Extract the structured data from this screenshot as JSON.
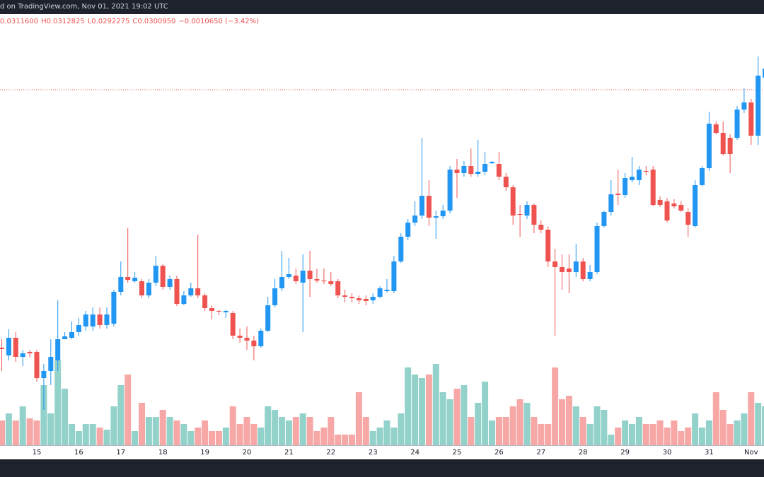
{
  "chart_data": {
    "type": "candlestick",
    "title": "d on TradingView.com, Nov 01, 2021 19:02 UTC",
    "legend": [
      "0.0311600",
      "H0.0312825",
      "L0.0292275",
      "C0.0300950",
      "−0.0010650 (−3.42%)"
    ],
    "categories": [
      null,
      null,
      null,
      null,
      null,
      "15",
      null,
      null,
      null,
      null,
      null,
      "16",
      null,
      null,
      null,
      null,
      null,
      "17",
      null,
      null,
      null,
      null,
      null,
      "18",
      null,
      null,
      null,
      null,
      null,
      "19",
      null,
      null,
      null,
      null,
      null,
      "20",
      null,
      null,
      null,
      null,
      null,
      "21",
      null,
      null,
      null,
      null,
      null,
      "22",
      null,
      null,
      null,
      null,
      null,
      "23",
      null,
      null,
      null,
      null,
      null,
      "24",
      null,
      null,
      null,
      null,
      null,
      "25",
      null,
      null,
      null,
      null,
      null,
      "26",
      null,
      null,
      null,
      null,
      null,
      "27",
      null,
      null,
      null,
      null,
      null,
      "28",
      null,
      null,
      null,
      null,
      null,
      "29",
      null,
      null,
      null,
      null,
      null,
      "30",
      null,
      null,
      null,
      null,
      null,
      "31",
      null,
      null,
      null,
      null,
      null,
      "Nov",
      null,
      null
    ],
    "open": [
      0.02276,
      0.02254,
      0.02304,
      0.0225,
      0.02264,
      0.02264,
      0.0219,
      0.0221,
      0.0224,
      0.023,
      0.02304,
      0.0232,
      0.02336,
      0.02336,
      0.0237,
      0.0234,
      0.02344,
      0.02434,
      0.02476,
      0.02464,
      0.02464,
      0.02424,
      0.0246,
      0.02508,
      0.02448,
      0.0247,
      0.024,
      0.02424,
      0.02444,
      0.02424,
      0.02388,
      0.0238,
      0.02376,
      0.02374,
      0.0231,
      0.02304,
      0.02296,
      0.0228,
      0.02324,
      0.02396,
      0.02444,
      0.02476,
      0.0248,
      0.0246,
      0.02494,
      0.0247,
      0.02466,
      0.02464,
      0.02464,
      0.02424,
      0.0242,
      0.02416,
      0.02414,
      0.0241,
      0.0242,
      0.02436,
      0.02436,
      0.0252,
      0.0259,
      0.0263,
      0.0265,
      0.02706,
      0.02644,
      0.02648,
      0.02664,
      0.0278,
      0.0277,
      0.0279,
      0.02768,
      0.02774,
      0.02798,
      0.02796,
      0.0276,
      0.0273,
      0.02654,
      0.0265,
      0.0268,
      0.02624,
      0.0261,
      0.0252,
      0.02504,
      0.025,
      0.0249,
      0.0252,
      0.0247,
      0.0249,
      0.0262,
      0.0266,
      0.02712,
      0.02708,
      0.0275,
      0.0275,
      0.02776,
      0.0278,
      0.02694,
      0.0269,
      0.02684,
      0.0268,
      0.0266,
      0.0262,
      0.02736,
      0.02784,
      0.02908,
      0.02884,
      0.0287,
      0.0287,
      0.0295,
      0.0297,
      0.02876,
      0.0304
    ],
    "high": [
      0.023,
      0.02328,
      0.0232,
      0.0227,
      0.0227,
      0.0227,
      0.0223,
      0.023,
      0.0241,
      0.0232,
      0.0235,
      0.0236,
      0.0238,
      0.0239,
      0.0239,
      0.0239,
      0.0244,
      0.0252,
      0.02614,
      0.0249,
      0.0247,
      0.0247,
      0.02536,
      0.02514,
      0.0248,
      0.0248,
      0.02436,
      0.0246,
      0.02596,
      0.0243,
      0.02396,
      0.02384,
      0.02384,
      0.0238,
      0.0233,
      0.02336,
      0.0231,
      0.0233,
      0.0242,
      0.0247,
      0.0255,
      0.0253,
      0.025,
      0.0254,
      0.0255,
      0.025,
      0.025,
      0.0249,
      0.0247,
      0.0244,
      0.0243,
      0.02424,
      0.02424,
      0.0243,
      0.0245,
      0.0247,
      0.02536,
      0.026,
      0.0264,
      0.0269,
      0.0287,
      0.0275,
      0.02664,
      0.0268,
      0.0279,
      0.0281,
      0.02804,
      0.0284,
      0.02864,
      0.0283,
      0.02804,
      0.0283,
      0.0277,
      0.02736,
      0.0268,
      0.0269,
      0.02684,
      0.02636,
      0.0262,
      0.02556,
      0.0254,
      0.0254,
      0.0257,
      0.0253,
      0.0251,
      0.0263,
      0.02664,
      0.0275,
      0.0278,
      0.0277,
      0.02816,
      0.0279,
      0.0279,
      0.0279,
      0.02704,
      0.027,
      0.02696,
      0.0269,
      0.0267,
      0.0275,
      0.0279,
      0.02944,
      0.02916,
      0.02916,
      0.0288,
      0.0296,
      0.0301,
      0.0298,
      0.031,
      0.0307
    ],
    "low": [
      0.0221,
      0.0224,
      0.02236,
      0.02224,
      0.0225,
      0.0218,
      0.021,
      0.0217,
      0.0221,
      0.023,
      0.023,
      0.0231,
      0.02324,
      0.02324,
      0.0233,
      0.0233,
      0.02336,
      0.02424,
      0.0246,
      0.0246,
      0.02416,
      0.02416,
      0.0245,
      0.0244,
      0.0244,
      0.02394,
      0.02396,
      0.0242,
      0.02416,
      0.0238,
      0.02356,
      0.02368,
      0.0236,
      0.023,
      0.0229,
      0.0227,
      0.0224,
      0.02276,
      0.0232,
      0.0239,
      0.02436,
      0.0247,
      0.02456,
      0.0232,
      0.0242,
      0.0246,
      0.02456,
      0.0245,
      0.02416,
      0.02404,
      0.02404,
      0.024,
      0.02396,
      0.024,
      0.02416,
      0.02432,
      0.0243,
      0.02516,
      0.0258,
      0.0262,
      0.0264,
      0.0262,
      0.02584,
      0.0264,
      0.02656,
      0.027,
      0.0276,
      0.0276,
      0.0276,
      0.02764,
      0.02796,
      0.0275,
      0.0272,
      0.02624,
      0.0259,
      0.0264,
      0.026,
      0.026,
      0.02504,
      0.0231,
      0.0244,
      0.0243,
      0.02476,
      0.02464,
      0.02464,
      0.02484,
      0.02616,
      0.0265,
      0.0268,
      0.027,
      0.02744,
      0.02736,
      0.02764,
      0.02676,
      0.02674,
      0.0263,
      0.0267,
      0.0266,
      0.0259,
      0.02616,
      0.02732,
      0.02776,
      0.0288,
      0.0282,
      0.0277,
      0.02864,
      0.0294,
      0.0285,
      0.0285,
      0.0304
    ],
    "close": [
      0.02272,
      0.02304,
      0.0225,
      0.0226,
      0.0226,
      0.0219,
      0.0221,
      0.0225,
      0.023,
      0.02308,
      0.0232,
      0.0234,
      0.0237,
      0.0237,
      0.0234,
      0.0237,
      0.02434,
      0.02476,
      0.02468,
      0.02474,
      0.02424,
      0.0246,
      0.02508,
      0.02448,
      0.0247,
      0.024,
      0.02424,
      0.02444,
      0.02424,
      0.02388,
      0.0238,
      0.02378,
      0.0238,
      0.0231,
      0.02304,
      0.02296,
      0.0228,
      0.02324,
      0.02396,
      0.02444,
      0.02476,
      0.02484,
      0.02464,
      0.02494,
      0.0247,
      0.02466,
      0.02464,
      0.02456,
      0.02424,
      0.0242,
      0.02416,
      0.0241,
      0.02408,
      0.0242,
      0.02444,
      0.0244,
      0.0252,
      0.0259,
      0.0263,
      0.0265,
      0.02706,
      0.02644,
      0.02648,
      0.02664,
      0.0278,
      0.0277,
      0.0279,
      0.02768,
      0.02774,
      0.02796,
      0.02802,
      0.0276,
      0.0273,
      0.0265,
      0.02652,
      0.0268,
      0.02624,
      0.0261,
      0.0252,
      0.02504,
      0.0249,
      0.0249,
      0.0252,
      0.0247,
      0.0249,
      0.0262,
      0.0266,
      0.0271,
      0.02708,
      0.02756,
      0.0276,
      0.0278,
      0.02774,
      0.0268,
      0.0268,
      0.02636,
      0.02676,
      0.02664,
      0.02624,
      0.02736,
      0.02784,
      0.0291,
      0.02884,
      0.02824,
      0.02824,
      0.0295,
      0.0297,
      0.02876,
      0.03046,
      0.03066
    ],
    "volume": [
      35,
      45,
      35,
      55,
      38,
      35,
      85,
      45,
      120,
      80,
      30,
      20,
      30,
      30,
      25,
      22,
      55,
      85,
      100,
      20,
      60,
      40,
      40,
      50,
      40,
      35,
      30,
      20,
      25,
      35,
      20,
      20,
      25,
      55,
      30,
      40,
      30,
      25,
      55,
      50,
      40,
      35,
      40,
      45,
      40,
      20,
      25,
      40,
      15,
      15,
      15,
      75,
      40,
      20,
      25,
      35,
      25,
      45,
      110,
      100,
      95,
      100,
      115,
      75,
      65,
      80,
      85,
      40,
      60,
      90,
      35,
      40,
      40,
      55,
      65,
      60,
      40,
      30,
      30,
      110,
      65,
      70,
      55,
      40,
      30,
      55,
      50,
      15,
      25,
      35,
      30,
      40,
      30,
      30,
      35,
      25,
      35,
      20,
      25,
      45,
      25,
      35,
      75,
      50,
      30,
      35,
      45,
      75,
      60,
      55
    ],
    "ylim": [
      0.02,
      0.0326
    ],
    "volume_ylim": [
      0,
      300
    ],
    "price_line": 0.03006,
    "up_color": "#2196f3",
    "down_color": "#ef5350",
    "volume_up_color": "#93d2ca",
    "volume_down_color": "#f7a8a6",
    "price_line_color": "#ef5350"
  }
}
